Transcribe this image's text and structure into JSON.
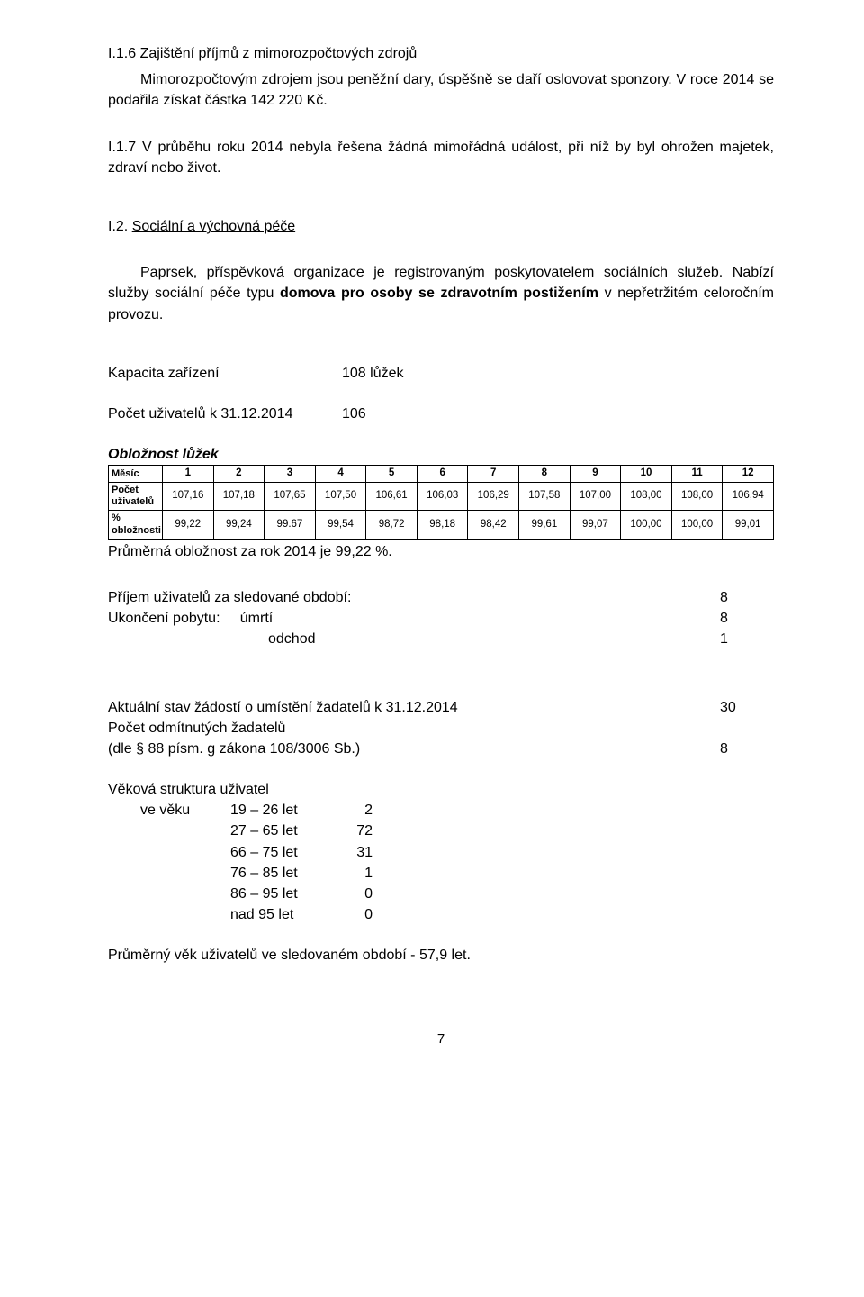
{
  "s1_6": {
    "num": "I.1.6",
    "title": "Zajištění příjmů z mimorozpočtových zdrojů",
    "body": "Mimorozpočtovým zdrojem jsou peněžní dary, úspěšně se daří oslovovat sponzory. V roce 2014 se podařila získat částka 142 220 Kč."
  },
  "s1_7": {
    "num": "I.1.7",
    "body": "V průběhu roku 2014 nebyla řešena žádná mimořádná událost, při níž by byl ohrožen majetek, zdraví nebo život."
  },
  "s2": {
    "num": "I.2.",
    "title": "Sociální a výchovná péče",
    "p1": "Paprsek, příspěvková organizace je registrovaným poskytovatelem sociálních služeb. Nabízí služby sociální péče typu domova pro osoby se zdravotním postižením v nepřetržitém celoročním provozu.",
    "bold_phrase": "domova pro osoby se zdravotním postižením"
  },
  "capacity": {
    "label": "Kapacita zařízení",
    "value": "108 lůžek"
  },
  "user_count": {
    "label": "Počet uživatelů k 31.12.2014",
    "value": "106"
  },
  "occupancy_heading": "Obložnost lůžek",
  "table": {
    "header_label": "Měsíc",
    "months": [
      "1",
      "2",
      "3",
      "4",
      "5",
      "6",
      "7",
      "8",
      "9",
      "10",
      "11",
      "12"
    ],
    "row_users_label": "Počet uživatelů",
    "row_users": [
      "107,16",
      "107,18",
      "107,65",
      "107,50",
      "106,61",
      "106,03",
      "106,29",
      "107,58",
      "107,00",
      "108,00",
      "108,00",
      "106,94"
    ],
    "row_pct_label": "% obložnosti",
    "row_pct": [
      "99,22",
      "99,24",
      "99.67",
      "99,54",
      "98,72",
      "98,18",
      "98,42",
      "99,61",
      "99,07",
      "100,00",
      "100,00",
      "99,01"
    ]
  },
  "avg_occ": "Průměrná obložnost za rok 2014 je 99,22  %.",
  "intake": {
    "line1_label": "Příjem uživatelů za sledované období:",
    "line1_val": "8",
    "line2a": "Ukončení pobytu:",
    "line2b": "úmrtí",
    "line2_val": "8",
    "line3_label": "odchod",
    "line3_val": "1"
  },
  "requests": {
    "line1_label": "Aktuální stav žádostí o umístění žadatelů k 31.12.2014",
    "line1_val": "30",
    "line2": "Počet odmítnutých žadatelů",
    "line3_label": "(dle § 88  písm. g zákona 108/3006 Sb.)",
    "line3_val": "8"
  },
  "age": {
    "heading": "Věková struktura uživatel",
    "lead": "ve věku",
    "rows": [
      {
        "range": "19 – 26 let",
        "val": "2"
      },
      {
        "range": "27 – 65 let",
        "val": "72"
      },
      {
        "range": "66 – 75 let",
        "val": "31"
      },
      {
        "range": "76 – 85 let",
        "val": "1"
      },
      {
        "range": "86 – 95 let",
        "val": "0"
      },
      {
        "range": "nad 95 let",
        "val": "0"
      }
    ]
  },
  "avg_age": "Průměrný věk uživatelů ve sledovaném období  -  57,9 let.",
  "page_number": "7"
}
